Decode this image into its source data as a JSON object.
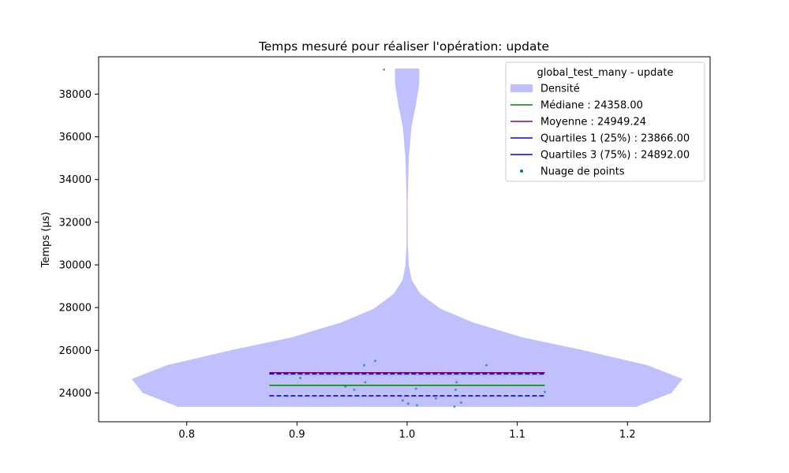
{
  "chart_data": {
    "type": "violin",
    "title": "Temps mesuré pour réaliser l'opération: update",
    "xlabel": "",
    "ylabel": "Temps (µs)",
    "xlim": [
      0.72,
      1.275
    ],
    "ylim": [
      22650,
      39750
    ],
    "x_ticks": [
      0.8,
      0.9,
      1.0,
      1.1,
      1.2
    ],
    "x_tick_labels": [
      "0.8",
      "0.9",
      "1.0",
      "1.1",
      "1.2"
    ],
    "y_ticks": [
      24000,
      26000,
      28000,
      30000,
      32000,
      34000,
      36000,
      38000
    ],
    "y_tick_labels": [
      "24000",
      "26000",
      "28000",
      "30000",
      "32000",
      "34000",
      "36000",
      "38000"
    ],
    "grid": false,
    "legend": {
      "title": "global_test_many - update",
      "placement": "top-right",
      "entries": [
        {
          "label": "Densité",
          "kind": "patch",
          "color": "#c0c0ff"
        },
        {
          "label": "Médiane : 24358.00",
          "kind": "line",
          "color": "#008000"
        },
        {
          "label": "Moyenne : 24949.24",
          "kind": "line",
          "color": "#800080"
        },
        {
          "label": "Quartiles 1 (25%) : 23866.00",
          "kind": "line",
          "color": "#0000ff"
        },
        {
          "label": "Quartiles 3 (75%) : 24892.00",
          "kind": "line",
          "color": "#0000ff"
        },
        {
          "label": "Nuage de points",
          "kind": "marker",
          "color": "#008080"
        }
      ]
    },
    "violin": {
      "center": 1.0,
      "color": "#c0c0ff",
      "profile": [
        {
          "y": 23350,
          "w": 0.208
        },
        {
          "y": 24000,
          "w": 0.24
        },
        {
          "y": 24650,
          "w": 0.25
        },
        {
          "y": 25300,
          "w": 0.218
        },
        {
          "y": 26000,
          "w": 0.16
        },
        {
          "y": 26600,
          "w": 0.105
        },
        {
          "y": 27300,
          "w": 0.06
        },
        {
          "y": 27950,
          "w": 0.03
        },
        {
          "y": 28650,
          "w": 0.012
        },
        {
          "y": 29300,
          "w": 0.004
        },
        {
          "y": 30000,
          "w": 0.0015
        },
        {
          "y": 31000,
          "w": 0.0006
        },
        {
          "y": 33000,
          "w": 0.0005
        },
        {
          "y": 35000,
          "w": 0.0015
        },
        {
          "y": 36500,
          "w": 0.004
        },
        {
          "y": 37500,
          "w": 0.008
        },
        {
          "y": 38500,
          "w": 0.011
        },
        {
          "y": 39200,
          "w": 0.011
        }
      ]
    },
    "lines": [
      {
        "name": "median",
        "y": 24358,
        "x": [
          0.875,
          1.125
        ],
        "color": "#008000",
        "dash": "solid"
      },
      {
        "name": "mean",
        "y": 24949.24,
        "x": [
          0.875,
          1.125
        ],
        "color": "#800080",
        "dash": "solid"
      },
      {
        "name": "q1",
        "y": 23866,
        "x": [
          0.875,
          1.125
        ],
        "color": "#0000ff",
        "dash": "dashed"
      },
      {
        "name": "q3",
        "y": 24892,
        "x": [
          0.875,
          1.125
        ],
        "color": "#0000ff",
        "dash": "dashed"
      }
    ],
    "points": {
      "color": "#008080",
      "values": [
        {
          "x": 0.979,
          "y": 39150
        },
        {
          "x": 0.971,
          "y": 25500
        },
        {
          "x": 0.961,
          "y": 25300
        },
        {
          "x": 1.072,
          "y": 25300
        },
        {
          "x": 0.903,
          "y": 24700
        },
        {
          "x": 0.962,
          "y": 24500
        },
        {
          "x": 1.045,
          "y": 24500
        },
        {
          "x": 0.944,
          "y": 24300
        },
        {
          "x": 0.952,
          "y": 24150
        },
        {
          "x": 1.008,
          "y": 24200
        },
        {
          "x": 1.044,
          "y": 24150
        },
        {
          "x": 1.125,
          "y": 24050
        },
        {
          "x": 1.026,
          "y": 23750
        },
        {
          "x": 0.996,
          "y": 23650
        },
        {
          "x": 1.001,
          "y": 23500
        },
        {
          "x": 1.049,
          "y": 23550
        },
        {
          "x": 1.009,
          "y": 23420
        },
        {
          "x": 1.043,
          "y": 23350
        }
      ]
    }
  }
}
